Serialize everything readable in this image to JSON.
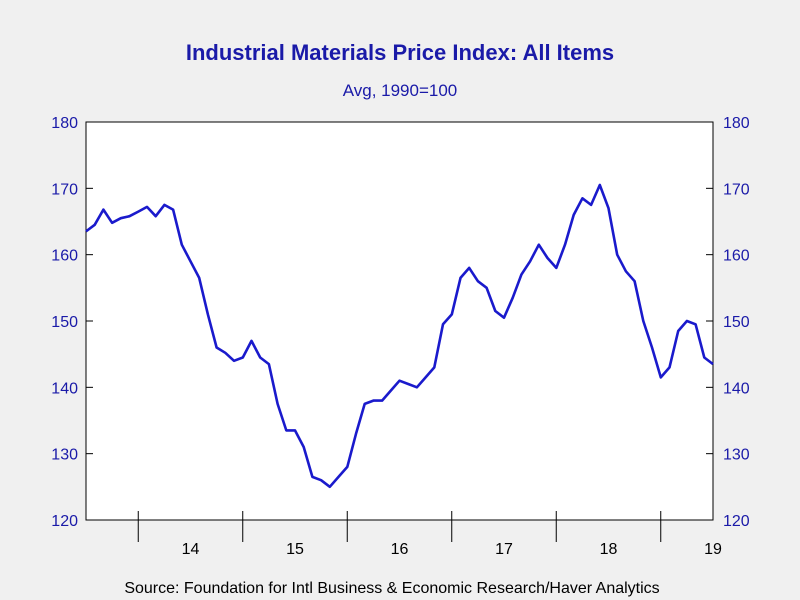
{
  "chart_data": {
    "type": "line",
    "title": "Industrial Materials Price Index: All Items",
    "subtitle": "Avg, 1990=100",
    "source": "Source:  Foundation for Intl Business & Economic Research/Haver Analytics",
    "xlabel": "",
    "ylabel": "",
    "ylim": [
      120,
      180
    ],
    "yticks": [
      120,
      130,
      140,
      150,
      160,
      170,
      180
    ],
    "year_labels": [
      "14",
      "15",
      "16",
      "17",
      "18",
      "19"
    ],
    "xlim": [
      "2013-07",
      "2019-07"
    ],
    "grid": false,
    "legend": "none",
    "line_color": "#1a1acc",
    "series": [
      {
        "x": [
          "2013-07",
          "2013-08",
          "2013-09",
          "2013-10",
          "2013-11",
          "2013-12",
          "2014-01",
          "2014-02",
          "2014-03",
          "2014-04",
          "2014-05",
          "2014-06",
          "2014-07",
          "2014-08",
          "2014-09",
          "2014-10",
          "2014-11",
          "2014-12",
          "2015-01",
          "2015-02",
          "2015-03",
          "2015-04",
          "2015-05",
          "2015-06",
          "2015-07",
          "2015-08",
          "2015-09",
          "2015-10",
          "2015-11",
          "2015-12",
          "2016-01",
          "2016-02",
          "2016-03",
          "2016-04",
          "2016-05",
          "2016-06",
          "2016-07",
          "2016-08",
          "2016-09",
          "2016-10",
          "2016-11",
          "2016-12",
          "2017-01",
          "2017-02",
          "2017-03",
          "2017-04",
          "2017-05",
          "2017-06",
          "2017-07",
          "2017-08",
          "2017-09",
          "2017-10",
          "2017-11",
          "2017-12",
          "2018-01",
          "2018-02",
          "2018-03",
          "2018-04",
          "2018-05",
          "2018-06",
          "2018-07",
          "2018-08",
          "2018-09",
          "2018-10",
          "2018-11",
          "2018-12",
          "2019-01",
          "2019-02",
          "2019-03",
          "2019-04",
          "2019-05",
          "2019-06",
          "2019-07"
        ],
        "values": [
          163.5,
          164.5,
          166.8,
          164.8,
          165.5,
          165.8,
          166.5,
          167.2,
          165.8,
          167.5,
          166.8,
          161.5,
          159.0,
          156.5,
          151.0,
          146.0,
          145.2,
          144.0,
          144.5,
          147.0,
          144.5,
          143.5,
          137.5,
          133.5,
          133.5,
          131.0,
          126.5,
          126.0,
          125.0,
          126.5,
          128.0,
          133.0,
          137.5,
          138.0,
          138.0,
          139.5,
          141.0,
          140.5,
          140.0,
          141.5,
          143.0,
          149.5,
          151.0,
          156.5,
          158.0,
          156.0,
          155.0,
          151.5,
          150.5,
          153.5,
          157.0,
          159.0,
          161.5,
          159.5,
          158.0,
          161.5,
          166.0,
          168.5,
          167.5,
          170.5,
          167.0,
          160.0,
          157.5,
          156.0,
          150.0,
          146.0,
          141.5,
          143.0,
          148.5,
          150.0,
          149.5,
          144.5,
          143.5
        ]
      }
    ]
  }
}
